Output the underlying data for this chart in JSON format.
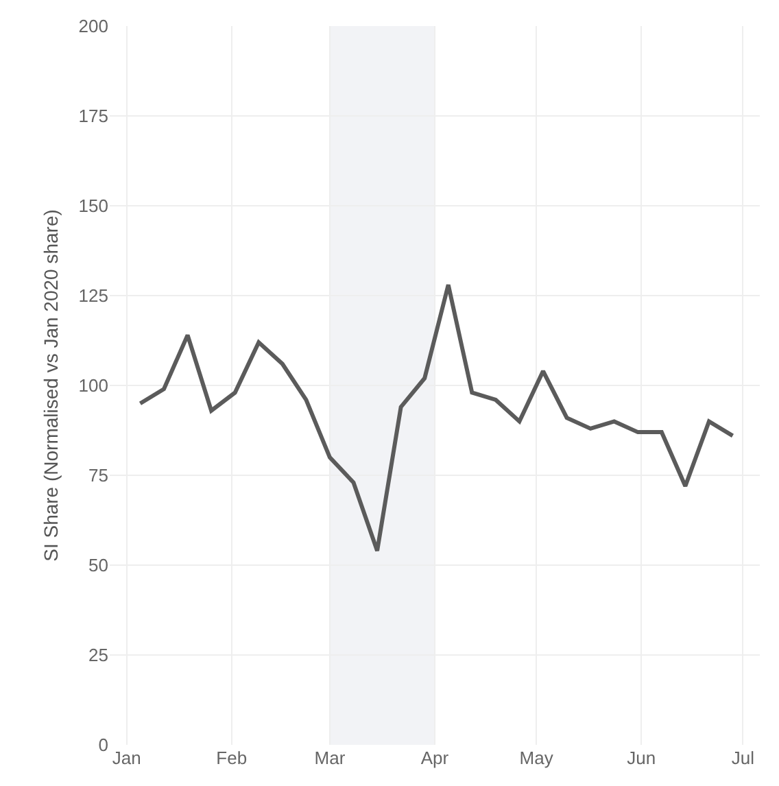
{
  "chart_data": {
    "type": "line",
    "ylabel": "SI Share (Normalised vs Jan 2020 share)",
    "x": [
      "2020-01-05",
      "2020-01-12",
      "2020-01-19",
      "2020-01-26",
      "2020-02-02",
      "2020-02-09",
      "2020-02-16",
      "2020-02-23",
      "2020-03-01",
      "2020-03-08",
      "2020-03-15",
      "2020-03-22",
      "2020-03-29",
      "2020-04-05",
      "2020-04-12",
      "2020-04-19",
      "2020-04-26",
      "2020-05-03",
      "2020-05-10",
      "2020-05-17",
      "2020-05-24",
      "2020-05-31",
      "2020-06-07",
      "2020-06-14",
      "2020-06-21",
      "2020-06-28"
    ],
    "series": [
      {
        "color": "#5b5b5b",
        "values": [
          95,
          99,
          114,
          93,
          98,
          112,
          106,
          96,
          80,
          73,
          54,
          94,
          102,
          128,
          98,
          96,
          90,
          104,
          91,
          88,
          90,
          87,
          87,
          72,
          90,
          86
        ]
      }
    ],
    "xlim": [
      "2019-12-27",
      "2020-07-06"
    ],
    "xticks": [
      {
        "value": "2020-01-01",
        "label": "Jan"
      },
      {
        "value": "2020-02-01",
        "label": "Feb"
      },
      {
        "value": "2020-03-01",
        "label": "Mar"
      },
      {
        "value": "2020-04-01",
        "label": "Apr"
      },
      {
        "value": "2020-05-01",
        "label": "May"
      },
      {
        "value": "2020-06-01",
        "label": "Jun"
      },
      {
        "value": "2020-07-01",
        "label": "Jul"
      }
    ],
    "ylim": [
      0,
      200
    ],
    "yticks": [
      0,
      25,
      50,
      75,
      100,
      125,
      150,
      175,
      200
    ],
    "bands": [
      {
        "axis": "x",
        "from": "2020-03-01",
        "to": "2020-04-01",
        "color": "#f2f3f6"
      }
    ],
    "grid": true,
    "marker": "none",
    "line_style": "solid"
  }
}
